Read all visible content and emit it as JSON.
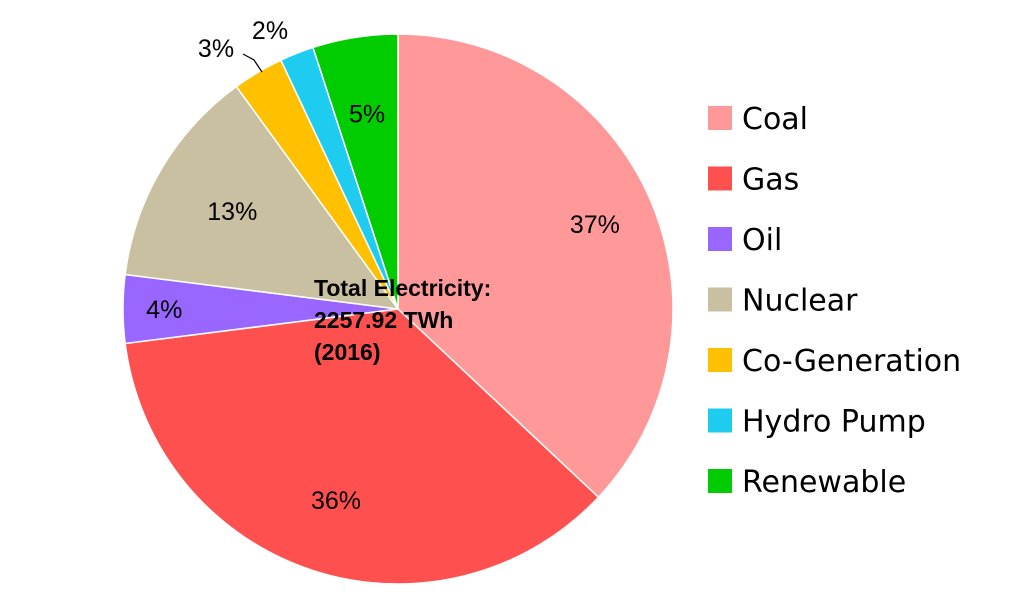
{
  "chart_data": {
    "type": "pie",
    "center_label": [
      "Total Electricity:",
      "2257.92 TWh",
      "(2016)"
    ],
    "slices": [
      {
        "name": "Coal",
        "value": 37,
        "label": "37%",
        "color": "#FF9999"
      },
      {
        "name": "Gas",
        "value": 36,
        "label": "36%",
        "color": "#FF5050"
      },
      {
        "name": "Oil",
        "value": 4,
        "label": "4%",
        "color": "#9966FF"
      },
      {
        "name": "Nuclear",
        "value": 13,
        "label": "13%",
        "color": "#C8C0A0"
      },
      {
        "name": "Co-Generation",
        "value": 3,
        "label": "3%",
        "color": "#FFC000"
      },
      {
        "name": "Hydro Pump",
        "value": 2,
        "label": "2%",
        "color": "#1ECCF0"
      },
      {
        "name": "Renewable",
        "value": 5,
        "label": "5%",
        "color": "#00CC00"
      }
    ],
    "legend_position": "right"
  }
}
